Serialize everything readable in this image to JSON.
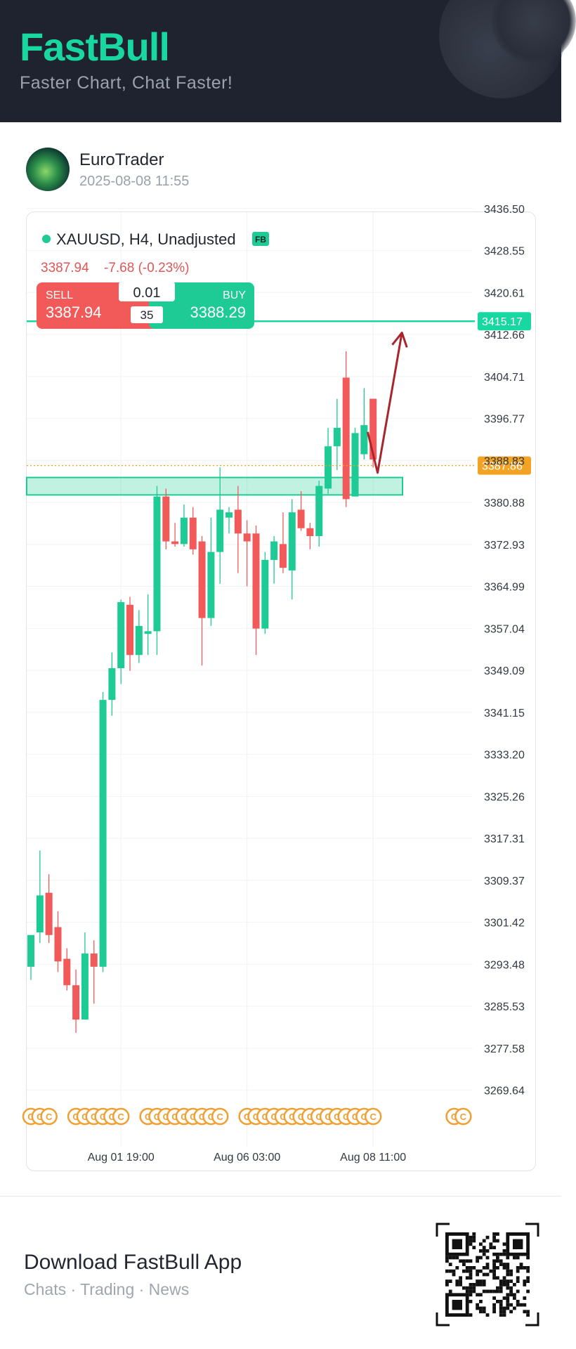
{
  "header": {
    "brand": "FastBull",
    "tagline": "Faster Chart, Chat Faster!"
  },
  "post": {
    "author": "EuroTrader",
    "timestamp": "2025-08-08 11:55"
  },
  "quote": {
    "symbol_line": "XAUUSD, H4, Unadjusted",
    "fb_badge": "FB",
    "price": "3387.94",
    "change": "-7.68 (-0.23%)",
    "sell_label": "SELL",
    "sell_price": "3387.94",
    "buy_label": "BUY",
    "buy_price": "3388.29",
    "lot": "0.01",
    "spread": "35"
  },
  "colors": {
    "up": "#1ecb94",
    "down": "#f25a5a",
    "accent": "#18d7a1",
    "current": "#f2a323",
    "arrow": "#a8262b",
    "coin": "#f0a032"
  },
  "chart_data": {
    "type": "candlestick",
    "symbol": "XAUUSD",
    "timeframe": "H4",
    "ylim": [
      3264,
      3440
    ],
    "y_ticks": [
      "3436.50",
      "3428.55",
      "3420.61",
      "3412.66",
      "3404.71",
      "3396.77",
      "3388.83",
      "3380.88",
      "3372.93",
      "3364.99",
      "3357.04",
      "3349.09",
      "3341.15",
      "3333.20",
      "3325.26",
      "3317.31",
      "3309.37",
      "3301.42",
      "3293.48",
      "3285.53",
      "3277.58",
      "3269.64"
    ],
    "x_ticks": [
      {
        "label": "Aug 01 19:00",
        "index": 10
      },
      {
        "label": "Aug 06 03:00",
        "index": 24
      },
      {
        "label": "Aug 08 11:00",
        "index": 38
      }
    ],
    "candles": [
      {
        "o": 3293.0,
        "h": 3299.0,
        "l": 3290.5,
        "c": 3299.0
      },
      {
        "o": 3299.5,
        "h": 3315.0,
        "l": 3297.5,
        "c": 3306.5
      },
      {
        "o": 3307.0,
        "h": 3310.5,
        "l": 3297.5,
        "c": 3299.0
      },
      {
        "o": 3300.5,
        "h": 3303.5,
        "l": 3292.0,
        "c": 3294.0
      },
      {
        "o": 3294.5,
        "h": 3296.5,
        "l": 3288.5,
        "c": 3289.5
      },
      {
        "o": 3289.5,
        "h": 3292.5,
        "l": 3280.5,
        "c": 3283.0
      },
      {
        "o": 3283.0,
        "h": 3299.5,
        "l": 3283.0,
        "c": 3295.5
      },
      {
        "o": 3295.5,
        "h": 3298.0,
        "l": 3286.0,
        "c": 3293.0
      },
      {
        "o": 3293.0,
        "h": 3345.0,
        "l": 3292.0,
        "c": 3343.5
      },
      {
        "o": 3343.5,
        "h": 3352.5,
        "l": 3340.5,
        "c": 3349.5
      },
      {
        "o": 3349.5,
        "h": 3362.5,
        "l": 3346.5,
        "c": 3362.0
      },
      {
        "o": 3361.5,
        "h": 3363.0,
        "l": 3349.0,
        "c": 3352.0
      },
      {
        "o": 3352.0,
        "h": 3360.5,
        "l": 3350.5,
        "c": 3357.5
      },
      {
        "o": 3356.0,
        "h": 3363.5,
        "l": 3352.0,
        "c": 3356.5
      },
      {
        "o": 3356.5,
        "h": 3384.0,
        "l": 3352.0,
        "c": 3382.0
      },
      {
        "o": 3382.0,
        "h": 3383.5,
        "l": 3372.0,
        "c": 3373.5
      },
      {
        "o": 3373.5,
        "h": 3377.0,
        "l": 3372.5,
        "c": 3373.0
      },
      {
        "o": 3373.0,
        "h": 3380.5,
        "l": 3372.5,
        "c": 3378.0
      },
      {
        "o": 3378.0,
        "h": 3380.0,
        "l": 3371.0,
        "c": 3372.0
      },
      {
        "o": 3373.5,
        "h": 3374.5,
        "l": 3350.0,
        "c": 3359.0
      },
      {
        "o": 3359.0,
        "h": 3378.0,
        "l": 3357.5,
        "c": 3371.5
      },
      {
        "o": 3371.5,
        "h": 3387.5,
        "l": 3365.5,
        "c": 3379.5
      },
      {
        "o": 3378.0,
        "h": 3380.0,
        "l": 3375.0,
        "c": 3379.0
      },
      {
        "o": 3379.5,
        "h": 3384.0,
        "l": 3367.5,
        "c": 3375.0
      },
      {
        "o": 3375.0,
        "h": 3377.5,
        "l": 3365.0,
        "c": 3373.5
      },
      {
        "o": 3375.0,
        "h": 3376.5,
        "l": 3352.0,
        "c": 3357.0
      },
      {
        "o": 3357.0,
        "h": 3371.5,
        "l": 3356.0,
        "c": 3370.0
      },
      {
        "o": 3370.0,
        "h": 3374.5,
        "l": 3365.5,
        "c": 3373.5
      },
      {
        "o": 3373.0,
        "h": 3379.0,
        "l": 3367.5,
        "c": 3368.5
      },
      {
        "o": 3368.0,
        "h": 3381.5,
        "l": 3362.5,
        "c": 3379.0
      },
      {
        "o": 3379.5,
        "h": 3383.0,
        "l": 3375.5,
        "c": 3376.0
      },
      {
        "o": 3376.0,
        "h": 3377.0,
        "l": 3372.0,
        "c": 3374.5
      },
      {
        "o": 3374.5,
        "h": 3385.0,
        "l": 3372.5,
        "c": 3384.0
      },
      {
        "o": 3383.5,
        "h": 3395.0,
        "l": 3382.5,
        "c": 3391.5
      },
      {
        "o": 3391.5,
        "h": 3400.5,
        "l": 3387.0,
        "c": 3395.0
      },
      {
        "o": 3404.5,
        "h": 3409.5,
        "l": 3380.0,
        "c": 3381.5
      },
      {
        "o": 3382.0,
        "h": 3395.0,
        "l": 3382.0,
        "c": 3394.0
      },
      {
        "o": 3390.0,
        "h": 3402.5,
        "l": 3389.0,
        "c": 3395.5
      },
      {
        "o": 3400.5,
        "h": 3400.5,
        "l": 3387.5,
        "c": 3389.0
      }
    ],
    "horizontal_line": {
      "price": 3415.17,
      "label": "3415.17"
    },
    "current_price": {
      "price": 3387.86,
      "label": "3387.86"
    },
    "support_zone": {
      "top": 3385.6,
      "bottom": 3382.3
    },
    "annotation": {
      "type": "arrow",
      "points": [
        {
          "index": 37.4,
          "price": 3394.2
        },
        {
          "index": 38.5,
          "price": 3386.5
        },
        {
          "index": 41.2,
          "price": 3413.0
        }
      ]
    },
    "event_markers": [
      {
        "glyph": "C",
        "indexes": [
          0,
          1,
          2,
          5,
          6,
          7,
          8,
          9,
          10,
          13,
          14,
          15,
          16,
          17,
          18,
          19,
          20,
          21,
          24,
          25,
          26,
          27,
          28,
          29,
          30,
          31,
          32,
          33,
          34,
          35,
          36,
          37,
          38,
          47,
          48
        ]
      }
    ]
  },
  "footer": {
    "download": "Download FastBull App",
    "subtitle": "Chats · Trading · News"
  }
}
